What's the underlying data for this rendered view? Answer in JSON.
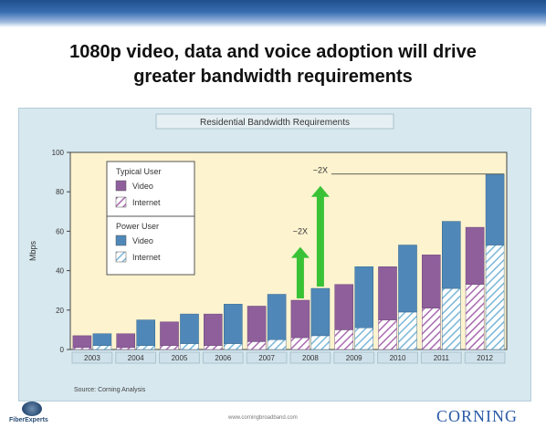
{
  "slide": {
    "title_line1": "1080p video, data and voice adoption will drive",
    "title_line2": "greater bandwidth requirements",
    "footer_url": "www.corningbroadband.com",
    "brand": "CORNING",
    "left_logo_text": "FiberExperts"
  },
  "colors": {
    "video": "#8f5f9c",
    "video_power": "#4f88b8",
    "internet_typical_hatch": "#a86ab0",
    "internet_power_hatch": "#7ab7d8",
    "plot_bg": "#fdf3cf",
    "arrow": "#39c236"
  },
  "chart_data": {
    "type": "bar",
    "title": "Residential Bandwidth Requirements",
    "ylabel": "Mbps",
    "xlabel": "",
    "ylim": [
      0,
      100
    ],
    "yticks": [
      0,
      20,
      40,
      60,
      80,
      100
    ],
    "categories": [
      "2003",
      "2004",
      "2005",
      "2006",
      "2007",
      "2008",
      "2009",
      "2010",
      "2011",
      "2012"
    ],
    "series": [
      {
        "name": "Video",
        "group": "Typical User",
        "stack": "typical",
        "values": [
          6,
          7,
          12,
          16,
          18,
          19,
          23,
          27,
          27,
          29
        ]
      },
      {
        "name": "Internet",
        "group": "Typical User",
        "stack": "typical",
        "values": [
          1,
          1,
          2,
          2,
          4,
          6,
          10,
          15,
          21,
          33
        ]
      },
      {
        "name": "Video",
        "group": "Power User",
        "stack": "power",
        "values": [
          6,
          13,
          15,
          20,
          23,
          24,
          31,
          34,
          34,
          36
        ]
      },
      {
        "name": "Internet",
        "group": "Power User",
        "stack": "power",
        "values": [
          2,
          2,
          3,
          3,
          5,
          7,
          11,
          19,
          31,
          53
        ]
      }
    ],
    "legend": {
      "placement": "top-left",
      "groups": [
        {
          "title": "Typical User",
          "items": [
            "Video",
            "Internet"
          ]
        },
        {
          "title": "Power User",
          "items": [
            "Video",
            "Internet"
          ]
        }
      ]
    },
    "annotations": [
      {
        "text": "~2X",
        "category": "2008",
        "stack": "typical",
        "value": 60
      },
      {
        "text": "~2X",
        "category": "2008",
        "stack": "power",
        "value": 91
      }
    ],
    "source": "Source: Corning Analysis",
    "grid": false
  }
}
